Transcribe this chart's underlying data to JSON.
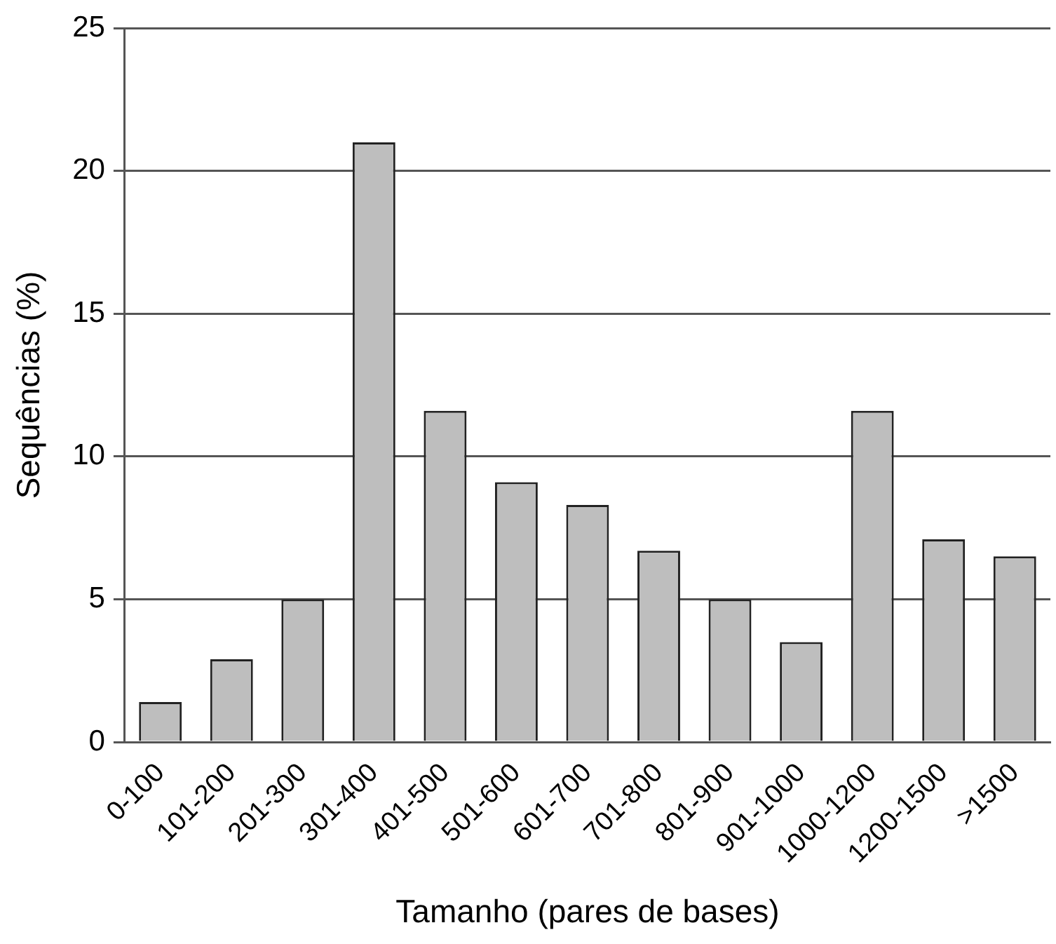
{
  "chart_data": {
    "type": "bar",
    "xlabel": "Tamanho (pares de bases)",
    "ylabel": "Sequências (%)",
    "categories": [
      "0-100",
      "101-200",
      "201-300",
      "301-400",
      "401-500",
      "501-600",
      "601-700",
      "701-800",
      "801-900",
      "901-1000",
      "1000-1200",
      "1200-1500",
      ">1500"
    ],
    "values": [
      1.4,
      2.9,
      5.0,
      21.0,
      11.6,
      9.1,
      8.3,
      6.7,
      5.0,
      3.5,
      11.6,
      7.1,
      6.5
    ],
    "color": "#bebebe",
    "ylim": [
      0,
      25
    ],
    "yticks": [
      0,
      5,
      10,
      15,
      20,
      25
    ],
    "grid": "y",
    "legend": false
  }
}
